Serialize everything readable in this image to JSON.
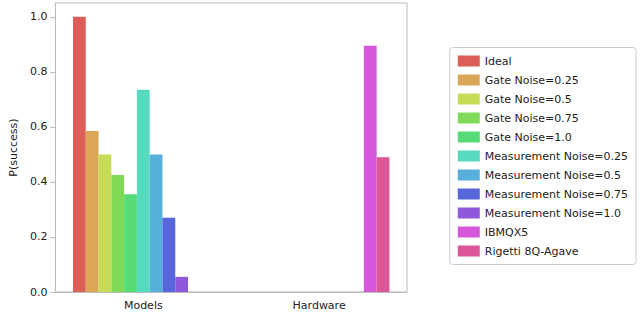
{
  "chart_data": {
    "type": "bar",
    "y_label": "P(success)",
    "categories": [
      "Models",
      "Hardware"
    ],
    "series": [
      {
        "name": "Ideal",
        "color": "#db5f57",
        "values": [
          1.0,
          null
        ]
      },
      {
        "name": "Gate Noise=0.25",
        "color": "#dba757",
        "values": [
          0.585,
          null
        ]
      },
      {
        "name": "Gate Noise=0.5",
        "color": "#c7db57",
        "values": [
          0.5,
          null
        ]
      },
      {
        "name": "Gate Noise=0.75",
        "color": "#7fdb57",
        "values": [
          0.425,
          null
        ]
      },
      {
        "name": "Gate Noise=1.0",
        "color": "#57db77",
        "values": [
          0.355,
          null
        ]
      },
      {
        "name": "Measurement Noise=0.25",
        "color": "#57dbbf",
        "values": [
          0.735,
          null
        ]
      },
      {
        "name": "Measurement Noise=0.5",
        "color": "#57afdb",
        "values": [
          0.5,
          null
        ]
      },
      {
        "name": "Measurement Noise=0.75",
        "color": "#5767db",
        "values": [
          0.27,
          null
        ]
      },
      {
        "name": "Measurement Noise=1.0",
        "color": "#8f57db",
        "values": [
          0.055,
          null
        ]
      },
      {
        "name": "IBMQX5",
        "color": "#d757db",
        "values": [
          null,
          0.895
        ]
      },
      {
        "name": "Rigetti 8Q-Agave",
        "color": "#db5797",
        "values": [
          null,
          0.49
        ]
      }
    ],
    "ylim": [
      0,
      1.05
    ],
    "yticks": [
      {
        "value": 0,
        "label": "0.0"
      },
      {
        "value": 0.2,
        "label": "0.2"
      },
      {
        "value": 0.4,
        "label": "0.4"
      },
      {
        "value": 0.6,
        "label": "0.6"
      },
      {
        "value": 0.8,
        "label": "0.8"
      },
      {
        "value": 1.0,
        "label": "1.0"
      }
    ],
    "grid": false,
    "legend": "right"
  }
}
